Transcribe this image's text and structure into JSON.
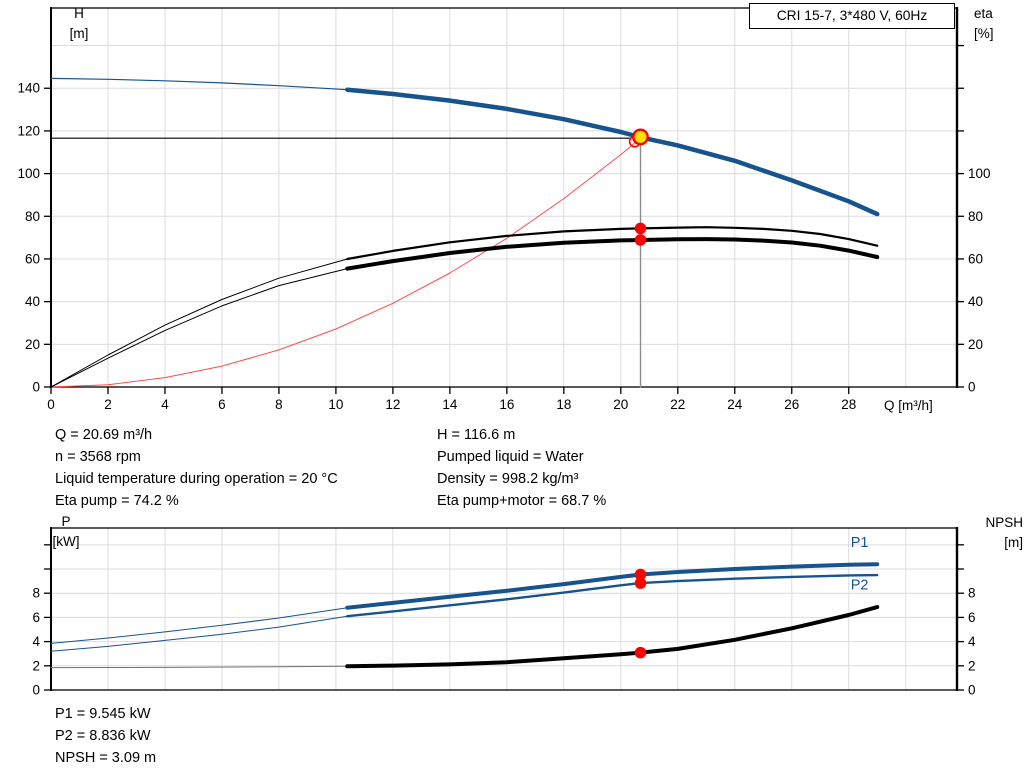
{
  "title_box": {
    "text": "CRI 15-7, 3*480 V, 60Hz"
  },
  "labels": {
    "h1": "H",
    "h2": "[m]",
    "eta1": "eta",
    "eta2": "[%]",
    "q": "Q [m³/h]",
    "p1": "P",
    "p2": "[kW]",
    "npsh1": "NPSH",
    "npsh2": "[m]"
  },
  "info_top": {
    "left": [
      "Q = 20.69 m³/h",
      "n = 3568 rpm",
      "Liquid temperature during operation = 20 °C",
      "Eta pump = 74.2 %"
    ],
    "right": [
      "H = 116.6 m",
      "Pumped liquid = Water",
      "Density = 998.2 kg/m³",
      "Eta pump+motor = 68.7 %"
    ]
  },
  "info_bottom": [
    "P1 = 9.545 kW",
    "P2 = 8.836 kW",
    "NPSH = 3.09 m"
  ],
  "colors": {
    "curve_blue": "#17538C",
    "curve_black": "#000000",
    "system_red": "#FF4B4B",
    "marker_red": "#FF0000",
    "duty_yellow": "#FFE100",
    "grid_gray": "#DCDCDC",
    "guide_gray": "#8C8C8C",
    "npsh_ext_gray": "#707070"
  },
  "duty_point": {
    "Q": 20.69,
    "H": 116.6,
    "eta_pump": 74.2,
    "eta_pump_motor": 68.7,
    "P1": 9.545,
    "P2": 8.836,
    "NPSH": 3.09
  },
  "chart_data": [
    {
      "id": "hq",
      "type": "line",
      "title": "CRI 15-7, 3*480 V, 60Hz",
      "xlabel": "Q [m³/h]",
      "ylabel_left": "H [m]",
      "ylabel_right": "eta [%]",
      "xlim": [
        0,
        31.8
      ],
      "ylim": [
        0,
        177.6
      ],
      "grid": {
        "x": [
          2,
          4,
          6,
          8,
          10,
          12,
          14,
          16,
          18,
          20,
          22,
          24,
          26,
          28,
          30
        ],
        "y": [
          20,
          40,
          60,
          80,
          100,
          120,
          140,
          160
        ]
      },
      "x_ticks": [
        [
          0,
          "0"
        ],
        [
          2,
          "2"
        ],
        [
          4,
          "4"
        ],
        [
          6,
          "6"
        ],
        [
          8,
          "8"
        ],
        [
          10,
          "10"
        ],
        [
          12,
          "12"
        ],
        [
          14,
          "14"
        ],
        [
          16,
          "16"
        ],
        [
          18,
          "18"
        ],
        [
          20,
          "20"
        ],
        [
          22,
          "22"
        ],
        [
          24,
          "24"
        ],
        [
          26,
          "26"
        ],
        [
          28,
          "28"
        ]
      ],
      "y_ticks_left": [
        [
          0,
          "0"
        ],
        [
          20,
          "20"
        ],
        [
          40,
          "40"
        ],
        [
          60,
          "60"
        ],
        [
          80,
          "80"
        ],
        [
          100,
          "100"
        ],
        [
          120,
          "120"
        ],
        [
          140,
          "140"
        ]
      ],
      "y_ticks_right": [
        [
          0,
          "0"
        ],
        [
          20,
          "20"
        ],
        [
          40,
          "40"
        ],
        [
          60,
          "60"
        ],
        [
          80,
          "80"
        ],
        [
          100,
          "100"
        ],
        [
          120,
          ""
        ],
        [
          140,
          ""
        ],
        [
          160,
          ""
        ]
      ],
      "series": [
        {
          "name": "duty-head-guide",
          "color": "#000000",
          "w": 1.2,
          "pts": [
            [
              0,
              116.6
            ],
            [
              20.3,
              116.6
            ]
          ]
        },
        {
          "name": "duty-flow-guide",
          "color": "#8C8C8C",
          "w": 1.4,
          "pts": [
            [
              20.69,
              0
            ],
            [
              20.69,
              116.6
            ]
          ]
        },
        {
          "name": "system-curve",
          "color": "#FF4B4B",
          "w": 1,
          "pts": [
            [
              0,
              0
            ],
            [
              2,
              1.1
            ],
            [
              4,
              4.4
            ],
            [
              6,
              9.8
            ],
            [
              8,
              17.4
            ],
            [
              10,
              27.2
            ],
            [
              12,
              39.2
            ],
            [
              14,
              53.4
            ],
            [
              16,
              69.7
            ],
            [
              18,
              88.3
            ],
            [
              20,
              108.9
            ],
            [
              20.69,
              116.6
            ]
          ]
        },
        {
          "name": "head-curve-extension",
          "color": "#17538C",
          "w": 1.2,
          "pts": [
            [
              0,
              144.6
            ],
            [
              2,
              144.2
            ],
            [
              4,
              143.5
            ],
            [
              6,
              142.5
            ],
            [
              8,
              141.2
            ],
            [
              10.4,
              139.3
            ]
          ]
        },
        {
          "name": "head-curve",
          "color": "#17538C",
          "w": 4.5,
          "pts": [
            [
              10.4,
              139.3
            ],
            [
              12,
              137.3
            ],
            [
              14,
              134.2
            ],
            [
              16,
              130.3
            ],
            [
              18,
              125.5
            ],
            [
              20,
              119.5
            ],
            [
              20.69,
              117.0
            ],
            [
              22,
              113.2
            ],
            [
              24,
              106.0
            ],
            [
              26,
              96.8
            ],
            [
              28,
              87.0
            ],
            [
              29,
              81.0
            ]
          ]
        },
        {
          "name": "eta-pump-extension",
          "color": "#000000",
          "w": 1,
          "pts": [
            [
              0,
              0
            ],
            [
              2,
              15
            ],
            [
              4,
              29
            ],
            [
              6,
              41
            ],
            [
              8,
              51
            ],
            [
              10.4,
              60
            ]
          ]
        },
        {
          "name": "eta-pump-curve",
          "color": "#000000",
          "w": 2.2,
          "pts": [
            [
              10.4,
              60
            ],
            [
              12,
              63.8
            ],
            [
              14,
              67.8
            ],
            [
              16,
              70.8
            ],
            [
              18,
              72.9
            ],
            [
              20,
              74.1
            ],
            [
              20.69,
              74.3
            ],
            [
              22,
              74.7
            ],
            [
              23,
              74.9
            ],
            [
              24,
              74.6
            ],
            [
              25,
              74.1
            ],
            [
              26,
              73.2
            ],
            [
              27,
              71.7
            ],
            [
              28,
              69.3
            ],
            [
              29,
              66.2
            ]
          ]
        },
        {
          "name": "eta-pump-motor-extension",
          "color": "#000000",
          "w": 1,
          "pts": [
            [
              0,
              0
            ],
            [
              2,
              13.5
            ],
            [
              4,
              26.5
            ],
            [
              6,
              38
            ],
            [
              8,
              47.5
            ],
            [
              10.4,
              55.5
            ]
          ]
        },
        {
          "name": "eta-pump-motor-curve",
          "color": "#000000",
          "w": 4,
          "pts": [
            [
              10.4,
              55.5
            ],
            [
              12,
              59
            ],
            [
              14,
              62.8
            ],
            [
              16,
              65.7
            ],
            [
              18,
              67.6
            ],
            [
              20,
              68.7
            ],
            [
              20.69,
              68.9
            ],
            [
              22,
              69.2
            ],
            [
              23,
              69.3
            ],
            [
              24,
              69.1
            ],
            [
              25,
              68.6
            ],
            [
              26,
              67.7
            ],
            [
              27,
              66.2
            ],
            [
              28,
              63.9
            ],
            [
              29,
              60.9
            ]
          ]
        }
      ],
      "markers": [
        {
          "name": "requested-duty-point",
          "q": 20.49,
          "v": 115.0,
          "r": 5.2,
          "fill": "none",
          "stroke": "#FF0000",
          "sw": 1.6
        },
        {
          "name": "duty-point",
          "q": 20.69,
          "v": 117.2,
          "r": 7.2,
          "fill": "#FFE100",
          "stroke": "#FF0000",
          "sw": 2.4
        },
        {
          "name": "eta-pump-duty-dot",
          "q": 20.69,
          "v": 74.3,
          "r": 5.8,
          "fill": "#FF0000",
          "stroke": "none",
          "sw": 0
        },
        {
          "name": "eta-pump-motor-duty-dot",
          "q": 20.69,
          "v": 68.9,
          "r": 5.8,
          "fill": "#FF0000",
          "stroke": "none",
          "sw": 0
        }
      ],
      "series_labels": []
    },
    {
      "id": "p_npsh",
      "type": "line",
      "title": "",
      "xlabel": "",
      "ylabel_left": "P [kW]",
      "ylabel_right": "NPSH [m]",
      "xlim": [
        0,
        31.8
      ],
      "ylim": [
        0,
        13.39
      ],
      "grid": {
        "x": [
          2,
          4,
          6,
          8,
          10,
          12,
          14,
          16,
          18,
          20,
          22,
          24,
          26,
          28,
          30
        ],
        "y": [
          2,
          4,
          6,
          8,
          10,
          12
        ]
      },
      "x_ticks": [],
      "y_ticks_left": [
        [
          0,
          "0"
        ],
        [
          2,
          "2"
        ],
        [
          4,
          "4"
        ],
        [
          6,
          "6"
        ],
        [
          8,
          "8"
        ],
        [
          10,
          ""
        ],
        [
          12,
          ""
        ]
      ],
      "y_ticks_right": [
        [
          0,
          "0"
        ],
        [
          2,
          "2"
        ],
        [
          4,
          "4"
        ],
        [
          6,
          "6"
        ],
        [
          8,
          "8"
        ],
        [
          10,
          ""
        ],
        [
          12,
          ""
        ]
      ],
      "series": [
        {
          "name": "npsh-curve-extension",
          "color": "#707070",
          "w": 1,
          "pts": [
            [
              0,
              1.85
            ],
            [
              4,
              1.87
            ],
            [
              8,
              1.92
            ],
            [
              10.4,
              1.97
            ]
          ]
        },
        {
          "name": "p1-curve-extension",
          "color": "#17538C",
          "w": 1,
          "pts": [
            [
              0,
              3.85
            ],
            [
              2,
              4.3
            ],
            [
              4,
              4.8
            ],
            [
              6,
              5.35
            ],
            [
              8,
              5.95
            ],
            [
              10.4,
              6.8
            ]
          ]
        },
        {
          "name": "p2-curve-extension",
          "color": "#17538C",
          "w": 1,
          "pts": [
            [
              0,
              3.2
            ],
            [
              2,
              3.6
            ],
            [
              4,
              4.1
            ],
            [
              6,
              4.6
            ],
            [
              8,
              5.2
            ],
            [
              10.4,
              6.1
            ]
          ]
        },
        {
          "name": "p1-curve",
          "color": "#17538C",
          "w": 4,
          "pts": [
            [
              10.4,
              6.8
            ],
            [
              12,
              7.2
            ],
            [
              14,
              7.7
            ],
            [
              16,
              8.2
            ],
            [
              18,
              8.75
            ],
            [
              20,
              9.35
            ],
            [
              20.69,
              9.545
            ],
            [
              22,
              9.75
            ],
            [
              24,
              10.0
            ],
            [
              26,
              10.2
            ],
            [
              28,
              10.35
            ],
            [
              29,
              10.4
            ]
          ]
        },
        {
          "name": "p2-curve",
          "color": "#17538C",
          "w": 2.4,
          "pts": [
            [
              10.4,
              6.1
            ],
            [
              12,
              6.5
            ],
            [
              14,
              7.0
            ],
            [
              16,
              7.5
            ],
            [
              18,
              8.05
            ],
            [
              20,
              8.65
            ],
            [
              20.69,
              8.836
            ],
            [
              22,
              9.0
            ],
            [
              24,
              9.2
            ],
            [
              26,
              9.35
            ],
            [
              28,
              9.47
            ],
            [
              29,
              9.5
            ]
          ]
        },
        {
          "name": "npsh-curve",
          "color": "#000000",
          "w": 4,
          "pts": [
            [
              10.4,
              1.97
            ],
            [
              12,
              2.02
            ],
            [
              14,
              2.12
            ],
            [
              16,
              2.3
            ],
            [
              18,
              2.62
            ],
            [
              20,
              2.95
            ],
            [
              20.69,
              3.09
            ],
            [
              22,
              3.4
            ],
            [
              24,
              4.15
            ],
            [
              26,
              5.1
            ],
            [
              28,
              6.2
            ],
            [
              29,
              6.85
            ]
          ]
        }
      ],
      "markers": [
        {
          "name": "p1-duty-dot",
          "q": 20.69,
          "v": 9.545,
          "r": 5.8,
          "fill": "#FF0000",
          "stroke": "none",
          "sw": 0
        },
        {
          "name": "p2-duty-dot",
          "q": 20.69,
          "v": 8.836,
          "r": 5.8,
          "fill": "#FF0000",
          "stroke": "none",
          "sw": 0
        },
        {
          "name": "npsh-duty-dot",
          "q": 20.69,
          "v": 3.09,
          "r": 5.8,
          "fill": "#FF0000",
          "stroke": "none",
          "sw": 0
        }
      ],
      "series_labels": [
        {
          "name": "p1-curve-label",
          "text": "P1",
          "q": 28.0,
          "v": 12.25
        },
        {
          "name": "p2-curve-label",
          "text": "P2",
          "q": 28.0,
          "v": 8.7
        }
      ]
    }
  ]
}
